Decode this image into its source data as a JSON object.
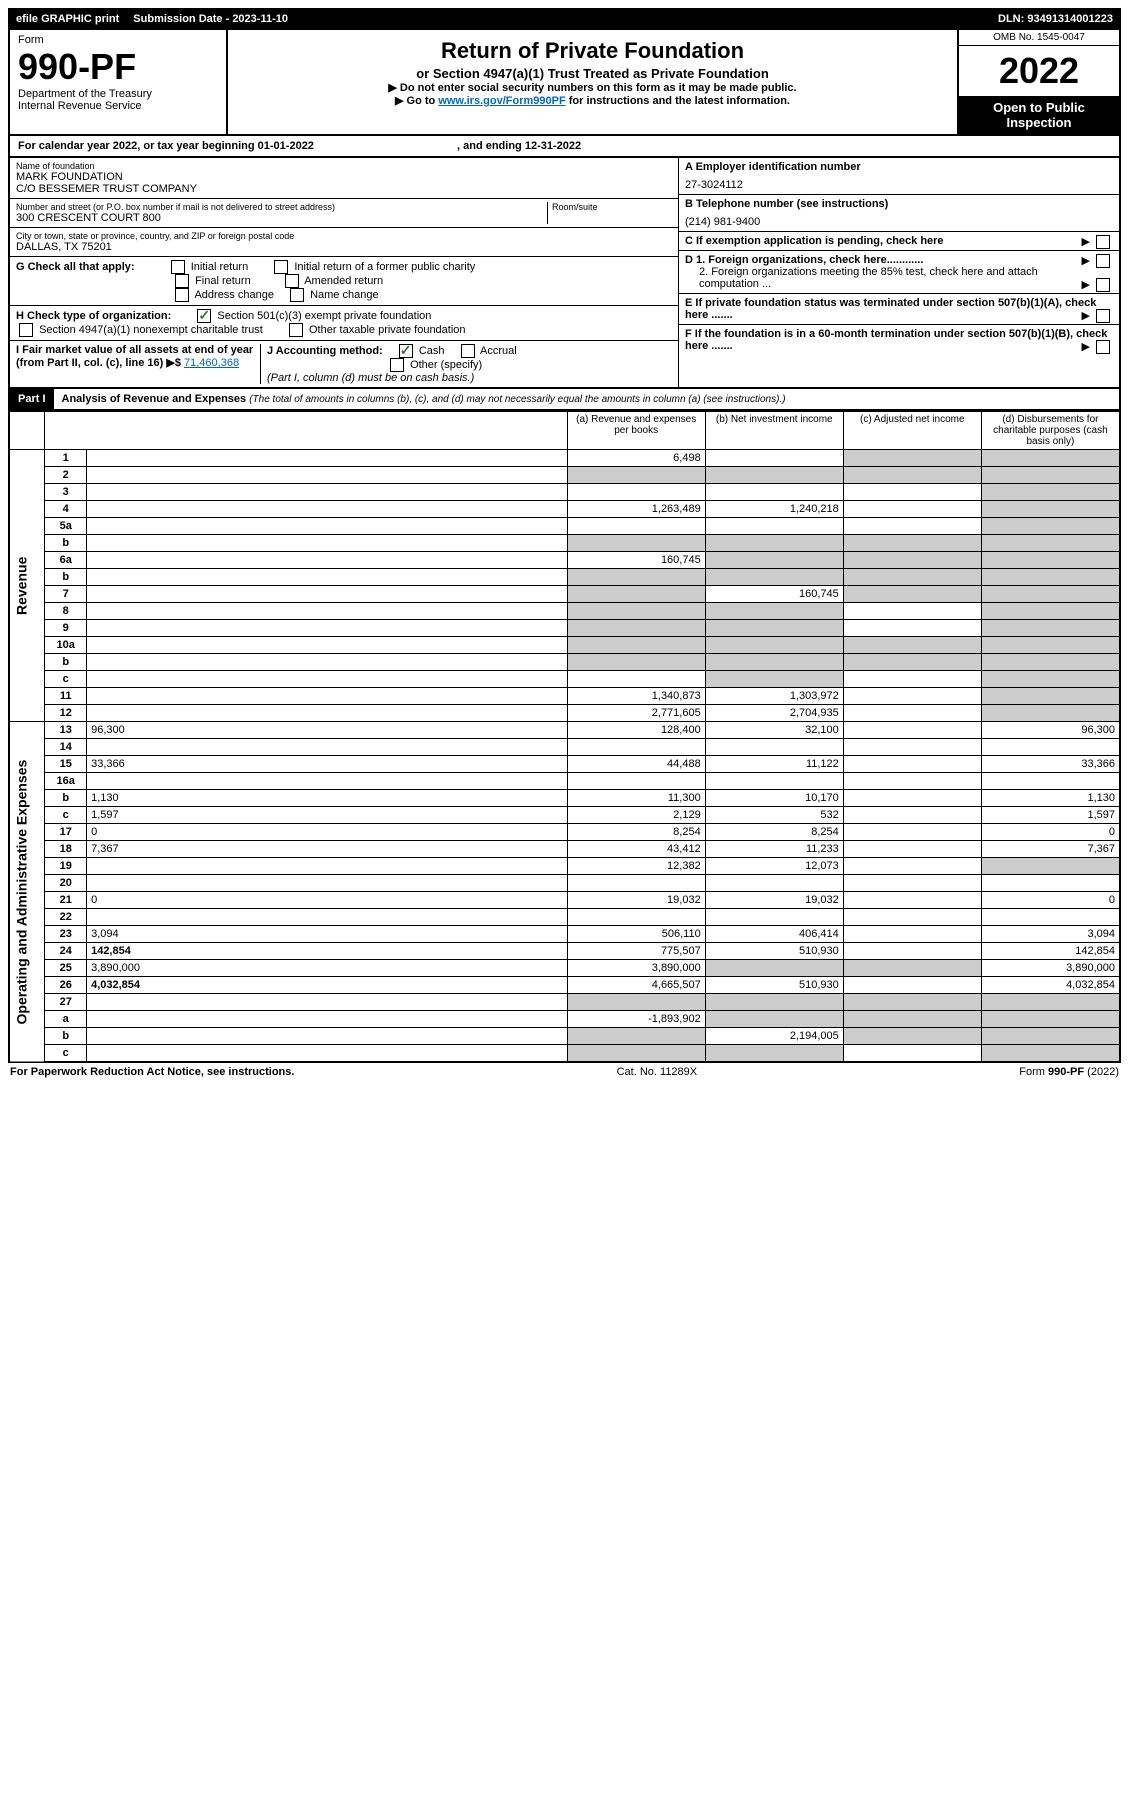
{
  "top": {
    "efile": "efile GRAPHIC print",
    "submission_label": "Submission Date - 2023-11-10",
    "dln": "DLN: 93491314001223"
  },
  "header": {
    "form_label": "Form",
    "form_number": "990-PF",
    "dept1": "Department of the Treasury",
    "dept2": "Internal Revenue Service",
    "title": "Return of Private Foundation",
    "subtitle": "or Section 4947(a)(1) Trust Treated as Private Foundation",
    "instr1": "▶ Do not enter social security numbers on this form as it may be made public.",
    "instr2_pre": "▶ Go to ",
    "instr2_link": "www.irs.gov/Form990PF",
    "instr2_post": " for instructions and the latest information.",
    "omb": "OMB No. 1545-0047",
    "year": "2022",
    "open": "Open to Public Inspection"
  },
  "cal_year": {
    "text_pre": "For calendar year 2022, or tax year beginning ",
    "begin": "01-01-2022",
    "mid": " , and ending ",
    "end": "12-31-2022"
  },
  "identity": {
    "name_label": "Name of foundation",
    "name1": "MARK FOUNDATION",
    "name2": "C/O BESSEMER TRUST COMPANY",
    "addr_label": "Number and street (or P.O. box number if mail is not delivered to street address)",
    "addr": "300 CRESCENT COURT 800",
    "room_label": "Room/suite",
    "city_label": "City or town, state or province, country, and ZIP or foreign postal code",
    "city": "DALLAS, TX  75201",
    "a_label": "A Employer identification number",
    "a_val": "27-3024112",
    "b_label": "B Telephone number (see instructions)",
    "b_val": "(214) 981-9400",
    "c_label": "C If exemption application is pending, check here",
    "d1": "D 1. Foreign organizations, check here............",
    "d2": "2. Foreign organizations meeting the 85% test, check here and attach computation ...",
    "e_label": "E  If private foundation status was terminated under section 507(b)(1)(A), check here .......",
    "f_label": "F  If the foundation is in a 60-month termination under section 507(b)(1)(B), check here .......",
    "g_label": "G Check all that apply:",
    "g_opts": [
      "Initial return",
      "Initial return of a former public charity",
      "Final return",
      "Amended return",
      "Address change",
      "Name change"
    ],
    "h_label": "H Check type of organization:",
    "h_opt1": "Section 501(c)(3) exempt private foundation",
    "h_opt2": "Section 4947(a)(1) nonexempt charitable trust",
    "h_opt3": "Other taxable private foundation",
    "i_label": "I Fair market value of all assets at end of year (from Part II, col. (c), line 16) ▶$",
    "i_val": "71,460,368",
    "j_label": "J Accounting method:",
    "j_cash": "Cash",
    "j_accrual": "Accrual",
    "j_other": "Other (specify)",
    "j_note": "(Part I, column (d) must be on cash basis.)"
  },
  "part1": {
    "header": "Part I",
    "title": "Analysis of Revenue and Expenses",
    "note": "(The total of amounts in columns (b), (c), and (d) may not necessarily equal the amounts in column (a) (see instructions).)",
    "col_a": "(a)  Revenue and expenses per books",
    "col_b": "(b)  Net investment income",
    "col_c": "(c)  Adjusted net income",
    "col_d": "(d)  Disbursements for charitable purposes (cash basis only)",
    "revenue_label": "Revenue",
    "expenses_label": "Operating and Administrative Expenses"
  },
  "rows": [
    {
      "n": "1",
      "d": "",
      "a": "6,498",
      "b": "",
      "c": "",
      "shade_b": false,
      "shade_c": true,
      "shade_d": true
    },
    {
      "n": "2",
      "d": "",
      "a": "",
      "b": "",
      "c": "",
      "shade_a": true,
      "shade_b": true,
      "shade_c": true,
      "shade_d": true
    },
    {
      "n": "3",
      "d": "",
      "a": "",
      "b": "",
      "c": "",
      "shade_d": true
    },
    {
      "n": "4",
      "d": "",
      "a": "1,263,489",
      "b": "1,240,218",
      "c": "",
      "shade_d": true
    },
    {
      "n": "5a",
      "d": "",
      "a": "",
      "b": "",
      "c": "",
      "shade_d": true
    },
    {
      "n": "b",
      "d": "",
      "a": "",
      "b": "",
      "c": "",
      "shade_a": true,
      "shade_b": true,
      "shade_c": true,
      "shade_d": true
    },
    {
      "n": "6a",
      "d": "",
      "a": "160,745",
      "b": "",
      "c": "",
      "shade_b": true,
      "shade_c": true,
      "shade_d": true
    },
    {
      "n": "b",
      "d": "",
      "a": "",
      "b": "",
      "c": "",
      "shade_a": true,
      "shade_b": true,
      "shade_c": true,
      "shade_d": true
    },
    {
      "n": "7",
      "d": "",
      "a": "",
      "b": "160,745",
      "c": "",
      "shade_a": true,
      "shade_c": true,
      "shade_d": true
    },
    {
      "n": "8",
      "d": "",
      "a": "",
      "b": "",
      "c": "",
      "shade_a": true,
      "shade_b": true,
      "shade_d": true
    },
    {
      "n": "9",
      "d": "",
      "a": "",
      "b": "",
      "c": "",
      "shade_a": true,
      "shade_b": true,
      "shade_d": true
    },
    {
      "n": "10a",
      "d": "",
      "a": "",
      "b": "",
      "c": "",
      "shade_a": true,
      "shade_b": true,
      "shade_c": true,
      "shade_d": true
    },
    {
      "n": "b",
      "d": "",
      "a": "",
      "b": "",
      "c": "",
      "shade_a": true,
      "shade_b": true,
      "shade_c": true,
      "shade_d": true
    },
    {
      "n": "c",
      "d": "",
      "a": "",
      "b": "",
      "c": "",
      "shade_b": true,
      "shade_d": true
    },
    {
      "n": "11",
      "d": "",
      "a": "1,340,873",
      "b": "1,303,972",
      "c": "",
      "shade_d": true
    },
    {
      "n": "12",
      "d": "",
      "a": "2,771,605",
      "b": "2,704,935",
      "c": "",
      "bold": true,
      "shade_d": true
    },
    {
      "n": "13",
      "d": "96,300",
      "a": "128,400",
      "b": "32,100",
      "c": ""
    },
    {
      "n": "14",
      "d": "",
      "a": "",
      "b": "",
      "c": ""
    },
    {
      "n": "15",
      "d": "33,366",
      "a": "44,488",
      "b": "11,122",
      "c": ""
    },
    {
      "n": "16a",
      "d": "",
      "a": "",
      "b": "",
      "c": ""
    },
    {
      "n": "b",
      "d": "1,130",
      "a": "11,300",
      "b": "10,170",
      "c": ""
    },
    {
      "n": "c",
      "d": "1,597",
      "a": "2,129",
      "b": "532",
      "c": ""
    },
    {
      "n": "17",
      "d": "0",
      "a": "8,254",
      "b": "8,254",
      "c": ""
    },
    {
      "n": "18",
      "d": "7,367",
      "a": "43,412",
      "b": "11,233",
      "c": ""
    },
    {
      "n": "19",
      "d": "",
      "a": "12,382",
      "b": "12,073",
      "c": "",
      "shade_d": true
    },
    {
      "n": "20",
      "d": "",
      "a": "",
      "b": "",
      "c": ""
    },
    {
      "n": "21",
      "d": "0",
      "a": "19,032",
      "b": "19,032",
      "c": ""
    },
    {
      "n": "22",
      "d": "",
      "a": "",
      "b": "",
      "c": ""
    },
    {
      "n": "23",
      "d": "3,094",
      "a": "506,110",
      "b": "406,414",
      "c": ""
    },
    {
      "n": "24",
      "d": "142,854",
      "a": "775,507",
      "b": "510,930",
      "c": "",
      "bold": true
    },
    {
      "n": "25",
      "d": "3,890,000",
      "a": "3,890,000",
      "b": "",
      "c": "",
      "shade_b": true,
      "shade_c": true
    },
    {
      "n": "26",
      "d": "4,032,854",
      "a": "4,665,507",
      "b": "510,930",
      "c": "",
      "bold": true
    },
    {
      "n": "27",
      "d": "",
      "a": "",
      "b": "",
      "c": "",
      "shade_a": true,
      "shade_b": true,
      "shade_c": true,
      "shade_d": true
    },
    {
      "n": "a",
      "d": "",
      "a": "-1,893,902",
      "b": "",
      "c": "",
      "bold": true,
      "shade_b": true,
      "shade_c": true,
      "shade_d": true
    },
    {
      "n": "b",
      "d": "",
      "a": "",
      "b": "2,194,005",
      "c": "",
      "bold": true,
      "shade_a": true,
      "shade_c": true,
      "shade_d": true
    },
    {
      "n": "c",
      "d": "",
      "a": "",
      "b": "",
      "c": "",
      "bold": true,
      "shade_a": true,
      "shade_b": true,
      "shade_d": true
    }
  ],
  "footer": {
    "left": "For Paperwork Reduction Act Notice, see instructions.",
    "mid": "Cat. No. 11289X",
    "right": "Form 990-PF (2022)"
  }
}
